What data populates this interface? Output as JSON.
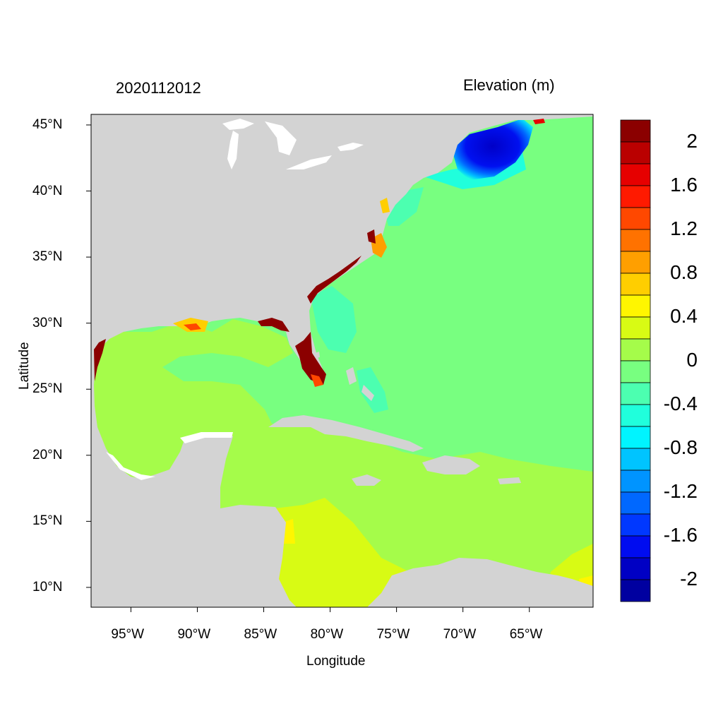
{
  "header": {
    "timestamp": "2020112012",
    "variable_title": "Elevation (m)"
  },
  "axes": {
    "xlabel": "Longitude",
    "ylabel": "Latitude",
    "x_ticks": [
      "95°W",
      "90°W",
      "85°W",
      "80°W",
      "75°W",
      "70°W",
      "65°W"
    ],
    "x_tick_values": [
      -95,
      -90,
      -85,
      -80,
      -75,
      -70,
      -65
    ],
    "y_ticks": [
      "45°N",
      "40°N",
      "35°N",
      "30°N",
      "25°N",
      "20°N",
      "15°N",
      "10°N"
    ],
    "y_tick_values": [
      45,
      40,
      35,
      30,
      25,
      20,
      15,
      10
    ],
    "lon_range": [
      -98,
      -60.2
    ],
    "lat_range": [
      8.5,
      45.8
    ]
  },
  "colorbar": {
    "labels": [
      "2",
      "1.6",
      "1.2",
      "0.8",
      "0.4",
      "0",
      "-0.4",
      "-0.8",
      "-1.2",
      "-1.6",
      "-2"
    ],
    "levels_top_to_bottom": [
      "#8B0000",
      "#BA0000",
      "#E60000",
      "#FF1A00",
      "#FF4800",
      "#FF7200",
      "#FF9F00",
      "#FFCE00",
      "#FFF600",
      "#D8FB14",
      "#A5FC4A",
      "#78FF80",
      "#4CFFB0",
      "#20FFDC",
      "#00F4FF",
      "#00C4FF",
      "#0094FF",
      "#0068FF",
      "#0038FF",
      "#000CF0",
      "#0000C4",
      "#0000A0"
    ]
  },
  "colors": {
    "land": "#D3D3D3",
    "lakes": "#FFFFFF",
    "ocean_zero": "#78FF80",
    "gulf_caribbean": "#A5FC4A",
    "south_caribbean": "#D8FB14",
    "negative_low": "#4CFFB0",
    "gulf_of_maine": "#0000D8",
    "surge_high": "#8B0000"
  }
}
